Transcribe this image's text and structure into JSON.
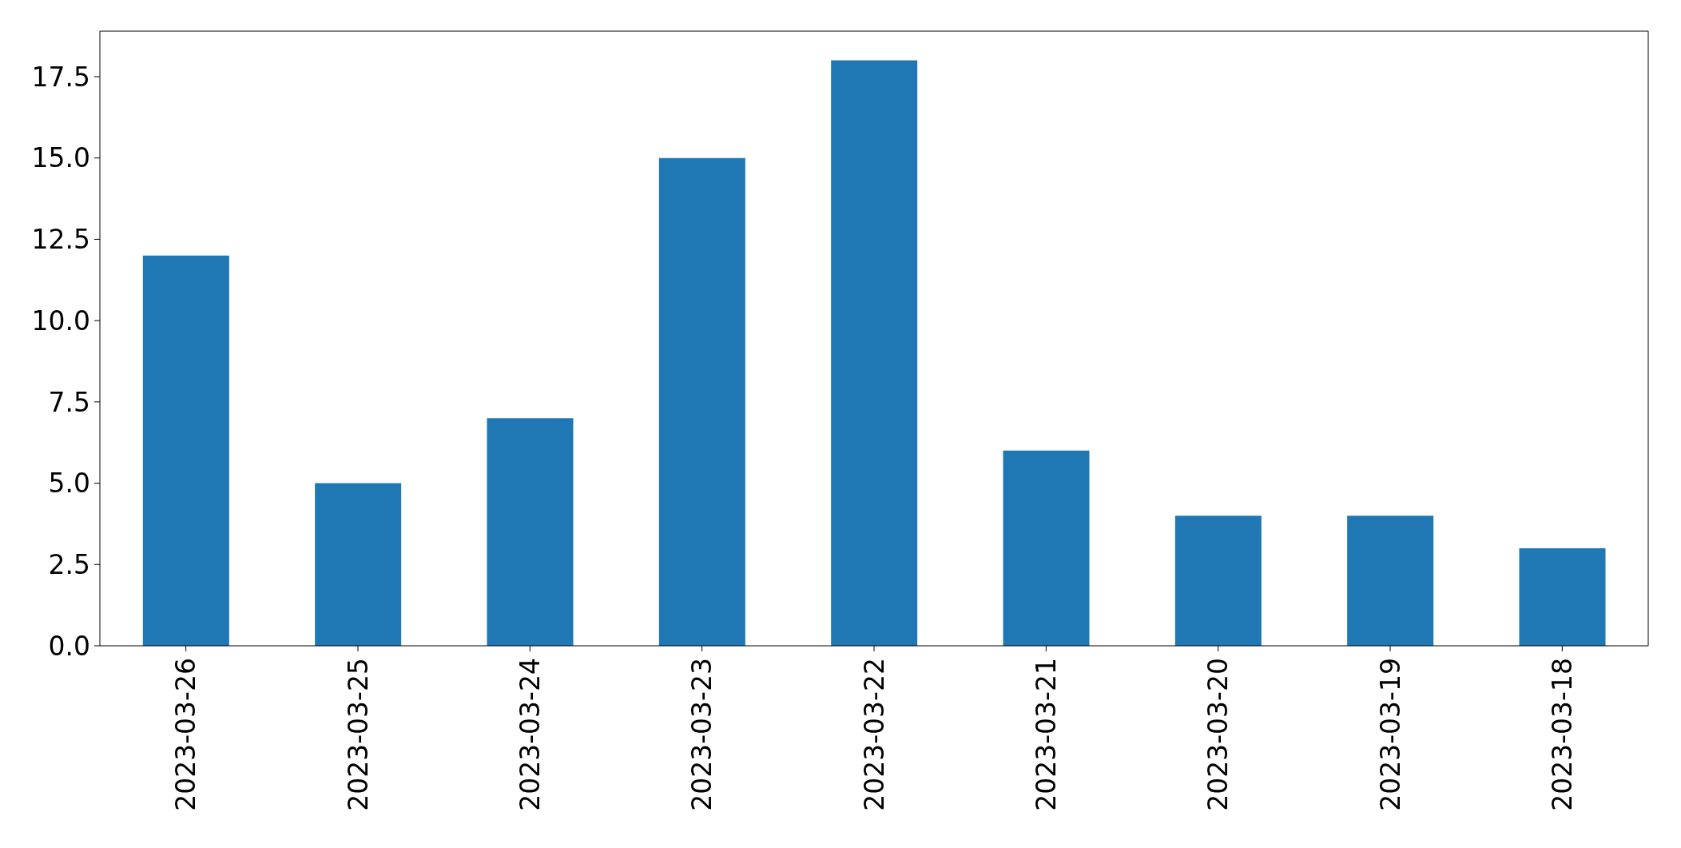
{
  "chart_data": {
    "type": "bar",
    "categories": [
      "2023-03-26",
      "2023-03-25",
      "2023-03-24",
      "2023-03-23",
      "2023-03-22",
      "2023-03-21",
      "2023-03-20",
      "2023-03-19",
      "2023-03-18"
    ],
    "values": [
      12,
      5,
      7,
      15,
      18,
      6,
      4,
      4,
      3
    ],
    "color": "#1f77b4",
    "ylim": [
      0,
      18.9
    ],
    "yticks": [
      {
        "value": 0,
        "label": "0.0"
      },
      2.5,
      {
        "value": 5,
        "label": "5.0"
      },
      7.5,
      {
        "value": 10,
        "label": "10.0"
      },
      12.5,
      {
        "value": 15,
        "label": "15.0"
      },
      17.5
    ]
  }
}
